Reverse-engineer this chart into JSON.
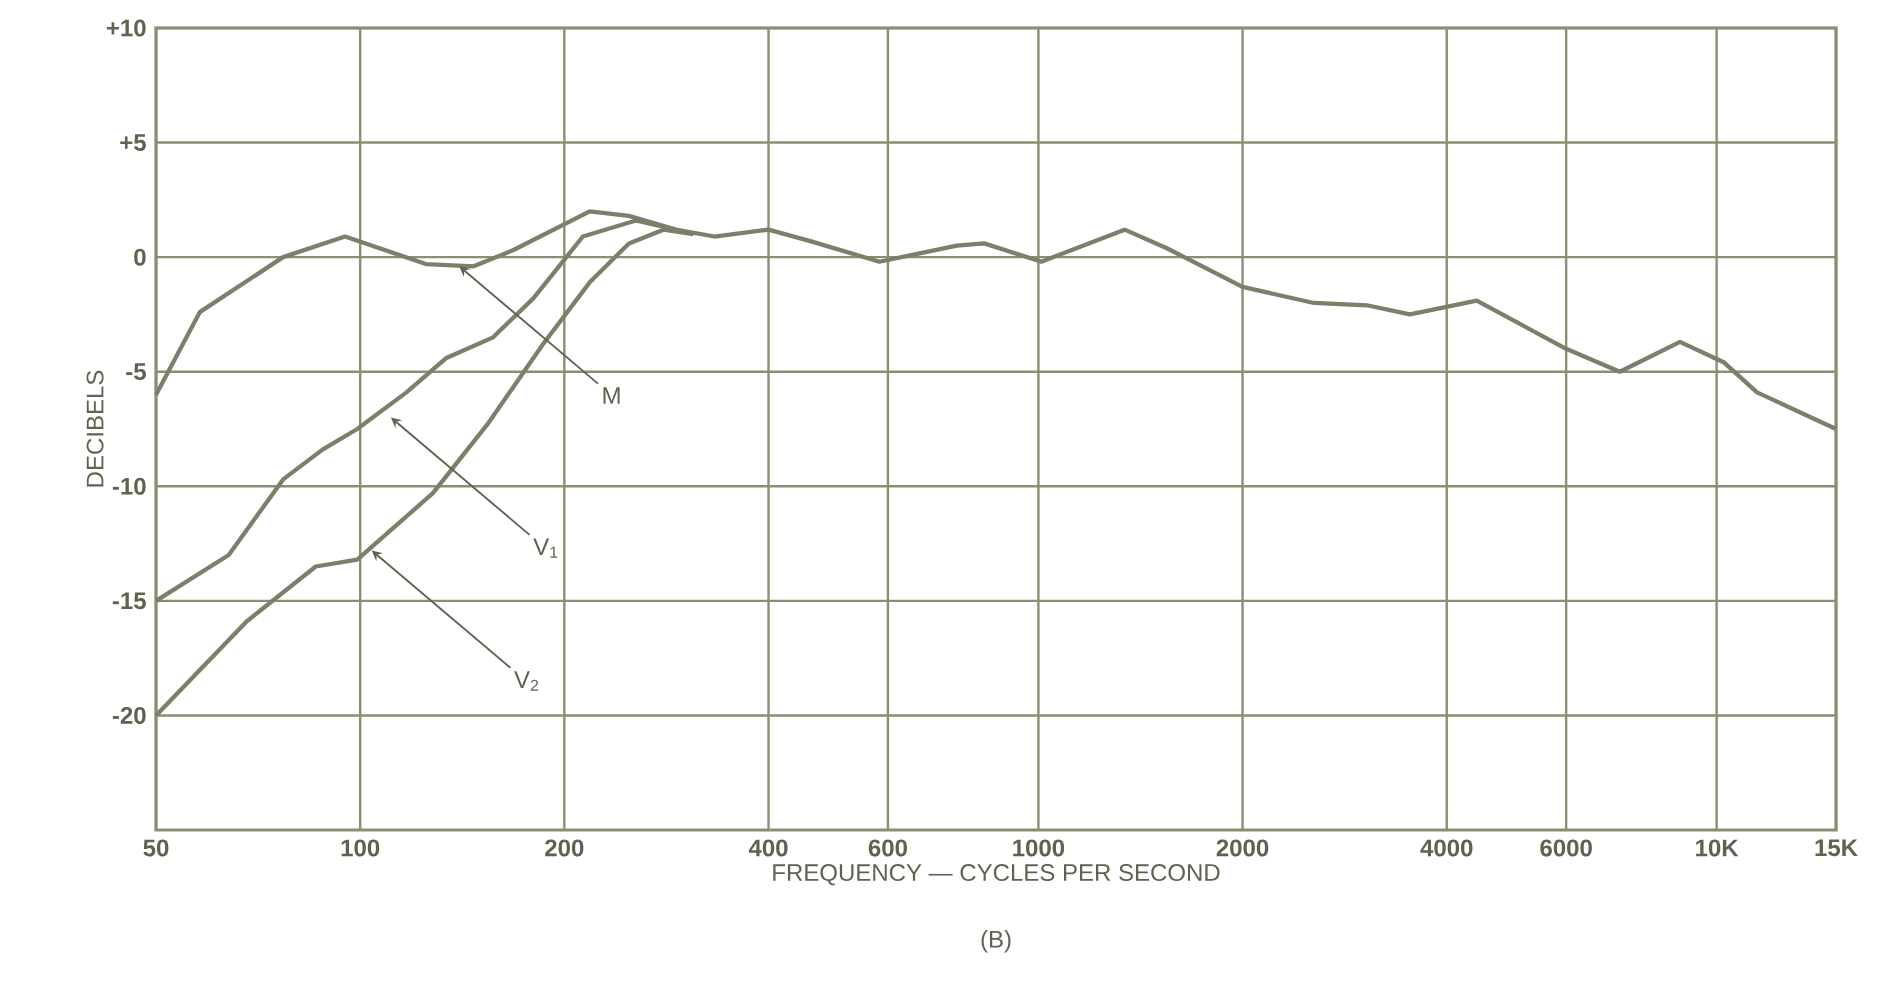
{
  "chart_data": {
    "type": "line",
    "xlabel": "FREQUENCY — CYCLES PER SECOND",
    "ylabel": "DECIBELS",
    "log": "x",
    "grid": true,
    "marker": "none",
    "line_style": "solid",
    "xlim": [
      50,
      15000
    ],
    "ylim": [
      -25,
      10
    ],
    "xticks": [
      50,
      100,
      200,
      400,
      600,
      1000,
      2000,
      4000,
      6000,
      {
        "value": 10000,
        "label": "10K"
      },
      {
        "value": 15000,
        "label": "15K"
      }
    ],
    "yticks": [
      {
        "value": 10,
        "label": "+10"
      },
      {
        "value": 5,
        "label": "+5"
      },
      0,
      -5,
      -10,
      -15,
      -20
    ],
    "series": [
      {
        "color": "#7a806a",
        "x": [
          50,
          58,
          77,
          95,
          125,
          147,
          168,
          218,
          249,
          292,
          333,
          400,
          461,
          583,
          758,
          832,
          1010,
          1340,
          1544,
          2000,
          2548,
          3050,
          3530,
          4430,
          6000,
          7200,
          8830,
          10260,
          11470,
          15000
        ],
        "values": [
          -6,
          -2.4,
          0,
          0.9,
          -0.3,
          -0.4,
          0.3,
          2.0,
          1.8,
          1.2,
          0.9,
          1.2,
          0.7,
          -0.2,
          0.5,
          0.6,
          -0.2,
          1.2,
          0.4,
          -1.3,
          -2.0,
          -2.1,
          -2.5,
          -1.9,
          -4.0,
          -5.0,
          -3.7,
          -4.6,
          -5.9,
          -7.5
        ]
      },
      {
        "color": "#7a806a",
        "x": [
          50,
          64,
          77,
          88,
          99,
          117,
          134,
          157,
          180,
          213,
          255,
          292
        ],
        "values": [
          -15,
          -13.0,
          -9.7,
          -8.4,
          -7.5,
          -5.9,
          -4.4,
          -3.5,
          -1.8,
          0.9,
          1.6,
          1.2
        ]
      },
      {
        "color": "#7a806a",
        "x": [
          50,
          68,
          86,
          99,
          128,
          154,
          186,
          218,
          249,
          280,
          310
        ],
        "values": [
          -20,
          -15.9,
          -13.5,
          -13.2,
          -10.3,
          -7.3,
          -3.8,
          -1.1,
          0.6,
          1.2,
          1.0
        ]
      }
    ],
    "annotations": [
      {
        "text": "M",
        "x": 140,
        "y": -0.4
      },
      {
        "text": "V$_{1}$",
        "x": 111,
        "y": -7
      },
      {
        "text": "V$_{2}$",
        "x": 104,
        "y": -12.8
      },
      "(B)"
    ]
  }
}
